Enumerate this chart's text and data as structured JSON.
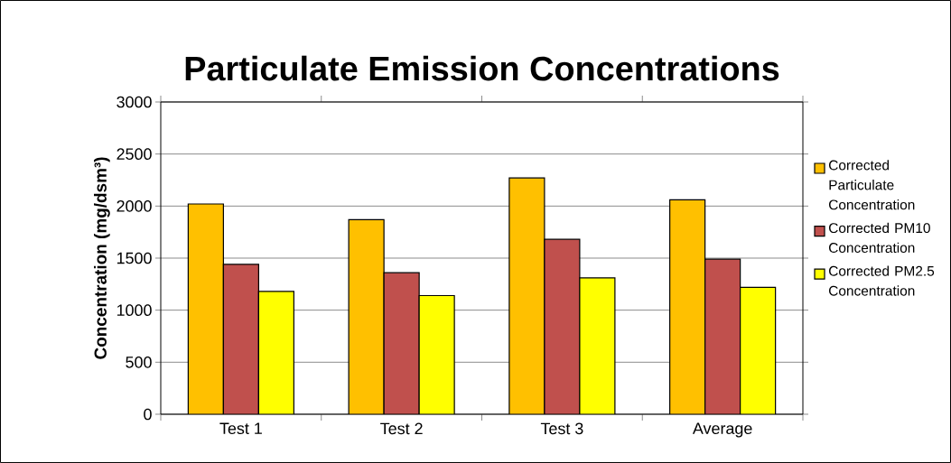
{
  "chart_data": {
    "type": "bar",
    "title": "Particulate Emission Concentrations",
    "ylabel": "Concentration (mg/dsm³)",
    "categories": [
      "Test 1",
      "Test 2",
      "Test 3",
      "Average"
    ],
    "series": [
      {
        "name": "Corrected Particulate Concentration",
        "color": "#ffc000",
        "values": [
          2020,
          1870,
          2270,
          2060
        ]
      },
      {
        "name": "Corrected PM10 Concentration",
        "color": "#c0504d",
        "values": [
          1440,
          1360,
          1680,
          1490
        ]
      },
      {
        "name": "Corrected PM2.5 Concentration",
        "color": "#ffff00",
        "values": [
          1180,
          1140,
          1310,
          1220
        ]
      }
    ],
    "ylim": [
      0,
      3000
    ],
    "yticks": [
      0,
      500,
      1000,
      1500,
      2000,
      2500,
      3000
    ],
    "grid": "y",
    "legend": "right"
  }
}
